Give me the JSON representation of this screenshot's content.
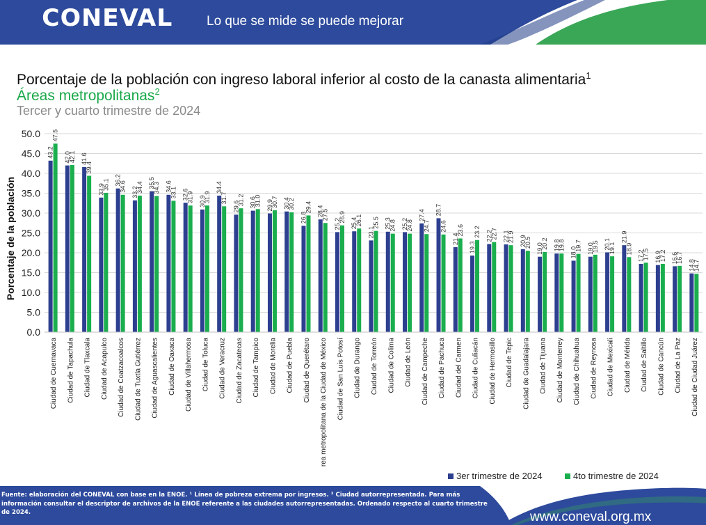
{
  "header": {
    "logo": "CONEVAL",
    "slogan": "Lo que se mide se puede mejorar",
    "color_blue": "#2d4a9c",
    "color_green": "#3aa757"
  },
  "title": {
    "main": "Porcentaje de la población con ingreso laboral inferior al costo de la canasta alimentaria",
    "main_sup": "1",
    "sub": "Áreas metropolitanas",
    "sub_sup": "2",
    "period": "Tercer y cuarto trimestre de 2024"
  },
  "chart_data": {
    "type": "bar",
    "ylabel": "Porcentaje de la población",
    "ylim": [
      0,
      50
    ],
    "yticks": [
      "0.0",
      "5.0",
      "10.0",
      "15.0",
      "20.0",
      "25.0",
      "30.0",
      "35.0",
      "40.0",
      "45.0",
      "50.0"
    ],
    "grid": true,
    "legend_position": "bottom-right",
    "categories": [
      "Ciudad de Cuernavaca",
      "Ciudad de Tapachula",
      "Ciudad de Tlaxcala",
      "Ciudad de Acapulco",
      "Ciudad de Coatzacoalcos",
      "Ciudad de Tuxtla Gutiérrez",
      "Ciudad de Aguascalientes",
      "Ciudad de Oaxaca",
      "Ciudad de Villahermosa",
      "Ciudad de Toluca",
      "Ciudad de Veracruz",
      "Ciudad de Zacatecas",
      "Ciudad de Tampico",
      "Ciudad de Morelia",
      "Ciudad de Puebla",
      "Ciudad de Querétaro",
      "Área metropolitana de la Ciudad de México",
      "Ciudad de San Luis Potosí",
      "Ciudad de Durango",
      "Ciudad de Torreón",
      "Ciudad de Colima",
      "Ciudad de León",
      "Ciudad de Campeche",
      "Ciudad de Pachuca",
      "Ciudad del Carmen",
      "Ciudad de Culiacán",
      "Ciudad de Hermosillo",
      "Ciudad de Tepic",
      "Ciudad de Guadalajara",
      "Ciudad de Tijuana",
      "Ciudad de Monterrey",
      "Ciudad de Chihuahua",
      "Ciudad de Reynosa",
      "Ciudad de Mexicali",
      "Ciudad de Mérida",
      "Ciudad de Saltillo",
      "Ciudad de Cancún",
      "Ciudad de La Paz",
      "Ciudad de Ciudad Juárez"
    ],
    "series": [
      {
        "name": "3er trimestre de 2024",
        "color": "#2d3f8f",
        "values": [
          43.2,
          42.0,
          41.6,
          33.9,
          36.2,
          33.2,
          35.5,
          34.6,
          32.6,
          30.9,
          34.4,
          29.6,
          30.6,
          29.9,
          30.4,
          26.8,
          28.4,
          25.2,
          25.4,
          23.1,
          25.3,
          25.2,
          27.4,
          28.7,
          21.4,
          19.3,
          22.2,
          22.1,
          20.9,
          19.0,
          19.8,
          18.0,
          19.0,
          20.1,
          21.9,
          17.2,
          16.9,
          16.6,
          14.8
        ]
      },
      {
        "name": "4to trimestre de 2024",
        "color": "#1aae4e",
        "values": [
          47.5,
          42.1,
          39.4,
          35.1,
          34.6,
          34.4,
          34.3,
          33.1,
          31.9,
          31.9,
          31.7,
          31.2,
          31.0,
          30.7,
          30.2,
          29.4,
          27.5,
          26.9,
          26.1,
          25.5,
          24.8,
          24.8,
          24.7,
          24.6,
          23.6,
          23.2,
          22.7,
          21.9,
          20.5,
          20.2,
          19.8,
          19.7,
          19.5,
          19.1,
          18.9,
          17.5,
          17.2,
          16.7,
          14.7
        ]
      }
    ]
  },
  "footer": {
    "note": "Fuente: elaboración del CONEVAL con base en la ENOE. ¹ Línea de pobreza extrema por ingresos. ² Ciudad autorrepresentada. Para más información consultar el descriptor de archivos de la ENOE referente a las ciudades autorrepresentadas. Ordenado respecto al cuarto trimestre de 2024.",
    "website": "www.coneval.org.mx"
  }
}
